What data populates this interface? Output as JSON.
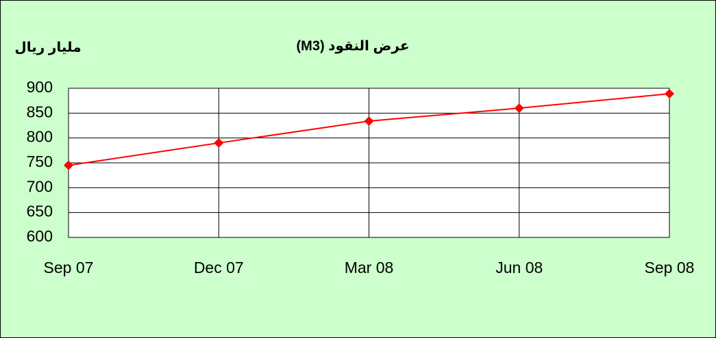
{
  "chart_data": {
    "type": "line",
    "title": "عرض النقود (M3)",
    "y_label": "مليار ريال",
    "categories": [
      "Sep 07",
      "Dec 07",
      "Mar 08",
      "Jun 08",
      "Sep 08"
    ],
    "values": [
      745,
      790,
      834,
      860,
      889
    ],
    "color": "#ff0000",
    "ylim": [
      600,
      900
    ],
    "yticks": [
      600,
      650,
      700,
      750,
      800,
      850,
      900
    ],
    "grid": true
  }
}
